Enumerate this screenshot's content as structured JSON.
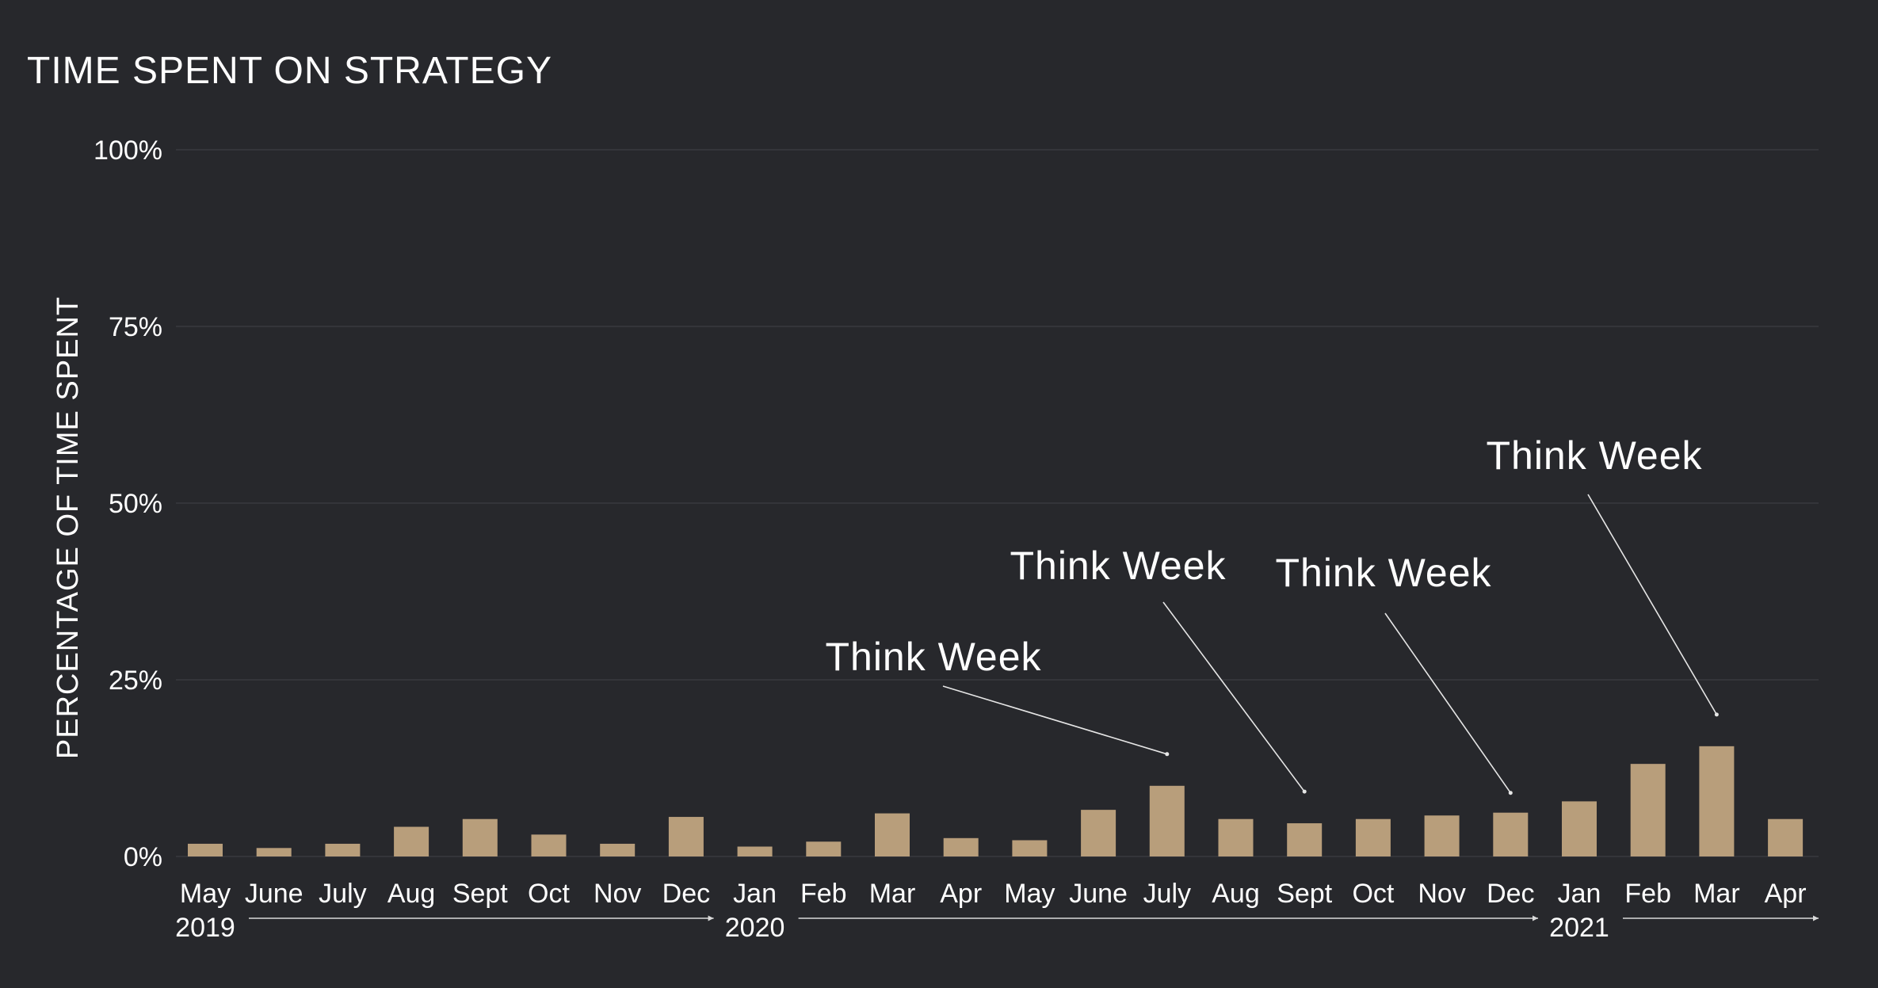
{
  "chart_data": {
    "type": "bar",
    "title": "TIME SPENT ON STRATEGY",
    "ylabel": "PERCENTAGE OF TIME SPENT",
    "xlabel": "",
    "ylim": [
      0,
      100
    ],
    "yticks": [
      "0%",
      "25%",
      "50%",
      "75%",
      "100%"
    ],
    "ytick_values": [
      0,
      25,
      50,
      75,
      100
    ],
    "grid": true,
    "categories": [
      "May",
      "June",
      "July",
      "Aug",
      "Sept",
      "Oct",
      "Nov",
      "Dec",
      "Jan",
      "Feb",
      "Mar",
      "Apr",
      "May",
      "June",
      "July",
      "Aug",
      "Sept",
      "Oct",
      "Nov",
      "Dec",
      "Jan",
      "Feb",
      "Mar",
      "Apr"
    ],
    "values": [
      1.8,
      1.2,
      1.8,
      4.2,
      5.3,
      3.1,
      1.8,
      5.6,
      1.4,
      2.1,
      6.1,
      2.6,
      2.3,
      6.6,
      10.0,
      5.3,
      4.7,
      5.3,
      5.8,
      6.2,
      7.8,
      13.1,
      15.6,
      5.3
    ],
    "color": "#b89e7b",
    "year_markers": [
      {
        "label": "2019",
        "index": 0
      },
      {
        "label": "2020",
        "index": 8
      },
      {
        "label": "2021",
        "index": 20
      }
    ],
    "annotations": [
      {
        "text": "Think Week",
        "index": 14
      },
      {
        "text": "Think Week",
        "index": 16
      },
      {
        "text": "Think Week",
        "index": 19
      },
      {
        "text": "Think Week",
        "index": 22
      }
    ]
  }
}
